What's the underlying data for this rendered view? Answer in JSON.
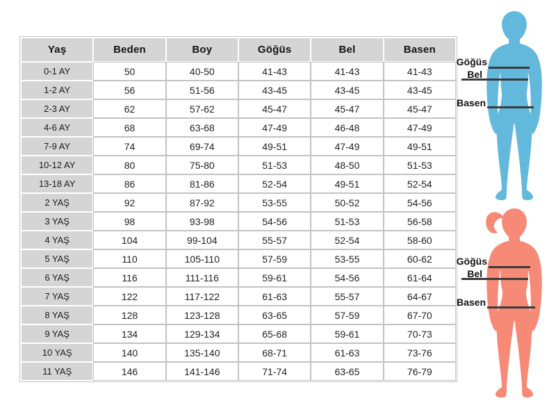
{
  "chart_data": {
    "type": "table",
    "title": "",
    "columns": [
      "Yaş",
      "Beden",
      "Boy",
      "Göğüs",
      "Bel",
      "Basen"
    ],
    "rows": [
      [
        "0-1 AY",
        "50",
        "40-50",
        "41-43",
        "41-43",
        "41-43"
      ],
      [
        "1-2 AY",
        "56",
        "51-56",
        "43-45",
        "43-45",
        "43-45"
      ],
      [
        "2-3 AY",
        "62",
        "57-62",
        "45-47",
        "45-47",
        "45-47"
      ],
      [
        "4-6 AY",
        "68",
        "63-68",
        "47-49",
        "46-48",
        "47-49"
      ],
      [
        "7-9 AY",
        "74",
        "69-74",
        "49-51",
        "47-49",
        "49-51"
      ],
      [
        "10-12 AY",
        "80",
        "75-80",
        "51-53",
        "48-50",
        "51-53"
      ],
      [
        "13-18 AY",
        "86",
        "81-86",
        "52-54",
        "49-51",
        "52-54"
      ],
      [
        "2 YAŞ",
        "92",
        "87-92",
        "53-55",
        "50-52",
        "54-56"
      ],
      [
        "3 YAŞ",
        "98",
        "93-98",
        "54-56",
        "51-53",
        "56-58"
      ],
      [
        "4 YAŞ",
        "104",
        "99-104",
        "55-57",
        "52-54",
        "58-60"
      ],
      [
        "5 YAŞ",
        "110",
        "105-110",
        "57-59",
        "53-55",
        "60-62"
      ],
      [
        "6 YAŞ",
        "116",
        "111-116",
        "59-61",
        "54-56",
        "61-64"
      ],
      [
        "7 YAŞ",
        "122",
        "117-122",
        "61-63",
        "55-57",
        "64-67"
      ],
      [
        "8 YAŞ",
        "128",
        "123-128",
        "63-65",
        "57-59",
        "67-70"
      ],
      [
        "9 YAŞ",
        "134",
        "129-134",
        "65-68",
        "59-61",
        "70-73"
      ],
      [
        "10 YAŞ",
        "140",
        "135-140",
        "68-71",
        "61-63",
        "73-76"
      ],
      [
        "11 YAŞ",
        "146",
        "141-146",
        "71-74",
        "63-65",
        "76-79"
      ]
    ]
  },
  "figures": {
    "boy": {
      "color": "#63b9dc",
      "chest_label": "Göğüs",
      "waist_label": "Bel",
      "hip_label": "Basen"
    },
    "girl": {
      "color": "#f68a76",
      "chest_label": "Göğüs",
      "waist_label": "Bel",
      "hip_label": "Basen"
    }
  },
  "colors": {
    "header_bg": "#d5d5d5",
    "grid": "#c2c2c2",
    "measure_line": "#3a3a3a",
    "background": "#ffffff"
  }
}
